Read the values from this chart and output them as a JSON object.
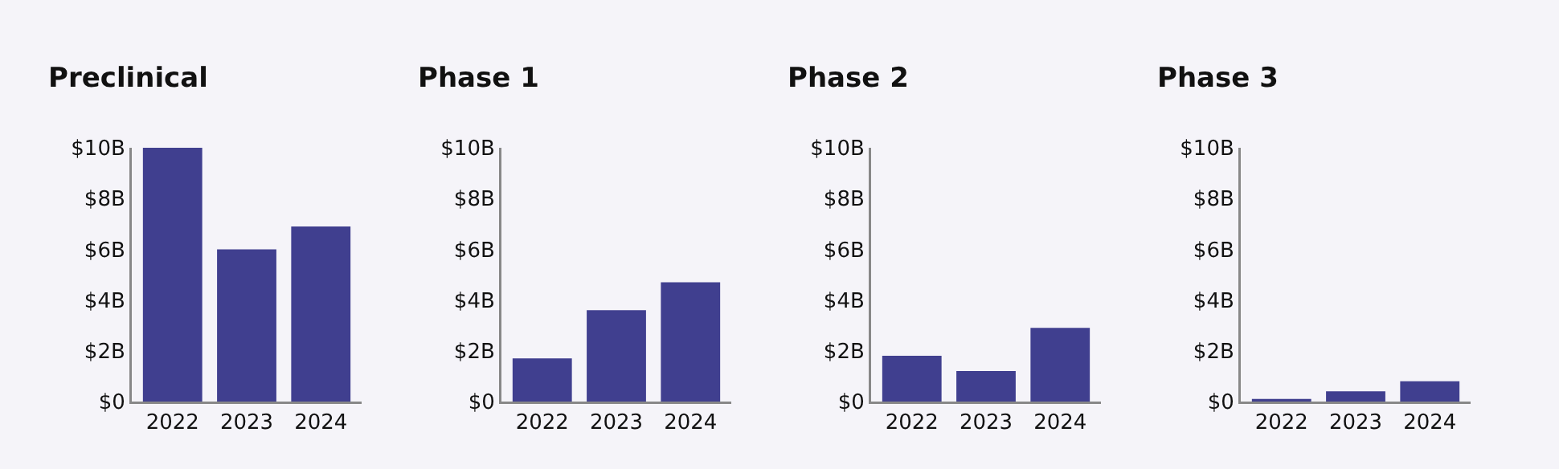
{
  "chart_data": [
    {
      "type": "bar",
      "title": "Preclinical",
      "categories": [
        "2022",
        "2023",
        "2024"
      ],
      "values": [
        10.0,
        6.0,
        6.9
      ],
      "color": "#403f8f",
      "ylim": [
        0,
        10
      ],
      "yticks": [
        {
          "value": 0,
          "label": "$0"
        },
        {
          "value": 2,
          "label": "$2B"
        },
        {
          "value": 4,
          "label": "$4B"
        },
        {
          "value": 6,
          "label": "$6B"
        },
        {
          "value": 8,
          "label": "$8B"
        },
        {
          "value": 10,
          "label": "$10B"
        }
      ],
      "grid": false
    },
    {
      "type": "bar",
      "title": "Phase 1",
      "categories": [
        "2022",
        "2023",
        "2024"
      ],
      "values": [
        1.7,
        3.6,
        4.7
      ],
      "color": "#403f8f",
      "ylim": [
        0,
        10
      ],
      "yticks": [
        {
          "value": 0,
          "label": "$0"
        },
        {
          "value": 2,
          "label": "$2B"
        },
        {
          "value": 4,
          "label": "$4B"
        },
        {
          "value": 6,
          "label": "$6B"
        },
        {
          "value": 8,
          "label": "$8B"
        },
        {
          "value": 10,
          "label": "$10B"
        }
      ],
      "grid": false
    },
    {
      "type": "bar",
      "title": "Phase 2",
      "categories": [
        "2022",
        "2023",
        "2024"
      ],
      "values": [
        1.8,
        1.2,
        2.9
      ],
      "color": "#403f8f",
      "ylim": [
        0,
        10
      ],
      "yticks": [
        {
          "value": 0,
          "label": "$0"
        },
        {
          "value": 2,
          "label": "$2B"
        },
        {
          "value": 4,
          "label": "$4B"
        },
        {
          "value": 6,
          "label": "$6B"
        },
        {
          "value": 8,
          "label": "$8B"
        },
        {
          "value": 10,
          "label": "$10B"
        }
      ],
      "grid": false
    },
    {
      "type": "bar",
      "title": "Phase 3",
      "categories": [
        "2022",
        "2023",
        "2024"
      ],
      "values": [
        0.1,
        0.4,
        0.8
      ],
      "color": "#403f8f",
      "ylim": [
        0,
        10
      ],
      "yticks": [
        {
          "value": 0,
          "label": "$0"
        },
        {
          "value": 2,
          "label": "$2B"
        },
        {
          "value": 4,
          "label": "$4B"
        },
        {
          "value": 6,
          "label": "$6B"
        },
        {
          "value": 8,
          "label": "$8B"
        },
        {
          "value": 10,
          "label": "$10B"
        }
      ],
      "grid": false
    }
  ]
}
